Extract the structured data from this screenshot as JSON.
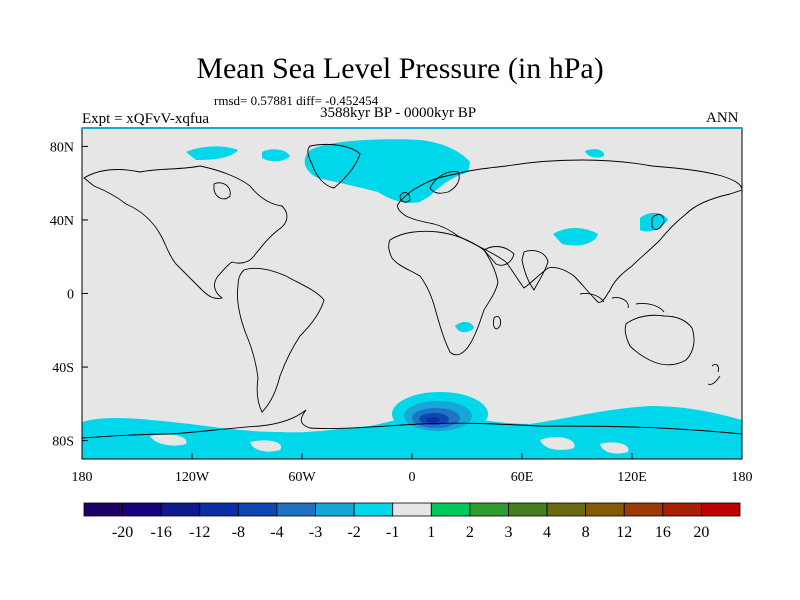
{
  "figure": {
    "title": "Mean Sea Level Pressure (in hPa)",
    "stats": "rmsd= 0.57881 diff= -0.452454",
    "experiment": "Expt = xQFvV-xqfua",
    "period": "3588kyr BP - 0000kyr BP",
    "season": "ANN"
  },
  "chart_data": {
    "type": "map",
    "projection": "cylindrical-equidistant",
    "lon_range": [
      -180,
      180
    ],
    "lat_range": [
      -90,
      90
    ],
    "x_ticks": [
      {
        "lon": -180,
        "label": "180"
      },
      {
        "lon": -120,
        "label": "120W"
      },
      {
        "lon": -60,
        "label": "60W"
      },
      {
        "lon": 0,
        "label": "0"
      },
      {
        "lon": 60,
        "label": "60E"
      },
      {
        "lon": 120,
        "label": "120E"
      },
      {
        "lon": 180,
        "label": "180"
      }
    ],
    "y_ticks": [
      {
        "lat": 80,
        "label": "80N"
      },
      {
        "lat": 40,
        "label": "40N"
      },
      {
        "lat": 0,
        "label": "0"
      },
      {
        "lat": -40,
        "label": "40S"
      },
      {
        "lat": -80,
        "label": "80S"
      }
    ],
    "colorbar": {
      "labels": [
        "-20",
        "-16",
        "-12",
        "-8",
        "-4",
        "-3",
        "-2",
        "-1",
        "1",
        "2",
        "3",
        "4",
        "8",
        "12",
        "16",
        "20"
      ],
      "colors": [
        "#1d0064",
        "#16007f",
        "#0c1a8e",
        "#0d2ea6",
        "#0d46b5",
        "#1e73c4",
        "#16a7d6",
        "#00d7ea",
        "#e6e6e6",
        "#00c95c",
        "#2f9a2e",
        "#467e1e",
        "#6a6a12",
        "#835a08",
        "#9b3a04",
        "#a82002",
        "#bf0000"
      ]
    },
    "anomaly_regions": [
      {
        "name": "arctic-greenland",
        "lon": [
          -90,
          10
        ],
        "lat": [
          60,
          90
        ],
        "category": "-2 to -1"
      },
      {
        "name": "east-asia",
        "lon": [
          120,
          150
        ],
        "lat": [
          25,
          50
        ],
        "category": "-2 to -1"
      },
      {
        "name": "southern-africa",
        "lon": [
          15,
          30
        ],
        "lat": [
          -25,
          -15
        ],
        "category": "-2 to -1"
      },
      {
        "name": "antarctic-atlantic",
        "lon": [
          -10,
          30
        ],
        "lat": [
          -80,
          -65
        ],
        "category": "-12 to -1"
      },
      {
        "name": "southern-ocean-ring",
        "lon": [
          -180,
          180
        ],
        "lat": [
          -90,
          -65
        ],
        "category": "-2 to -1"
      }
    ]
  }
}
